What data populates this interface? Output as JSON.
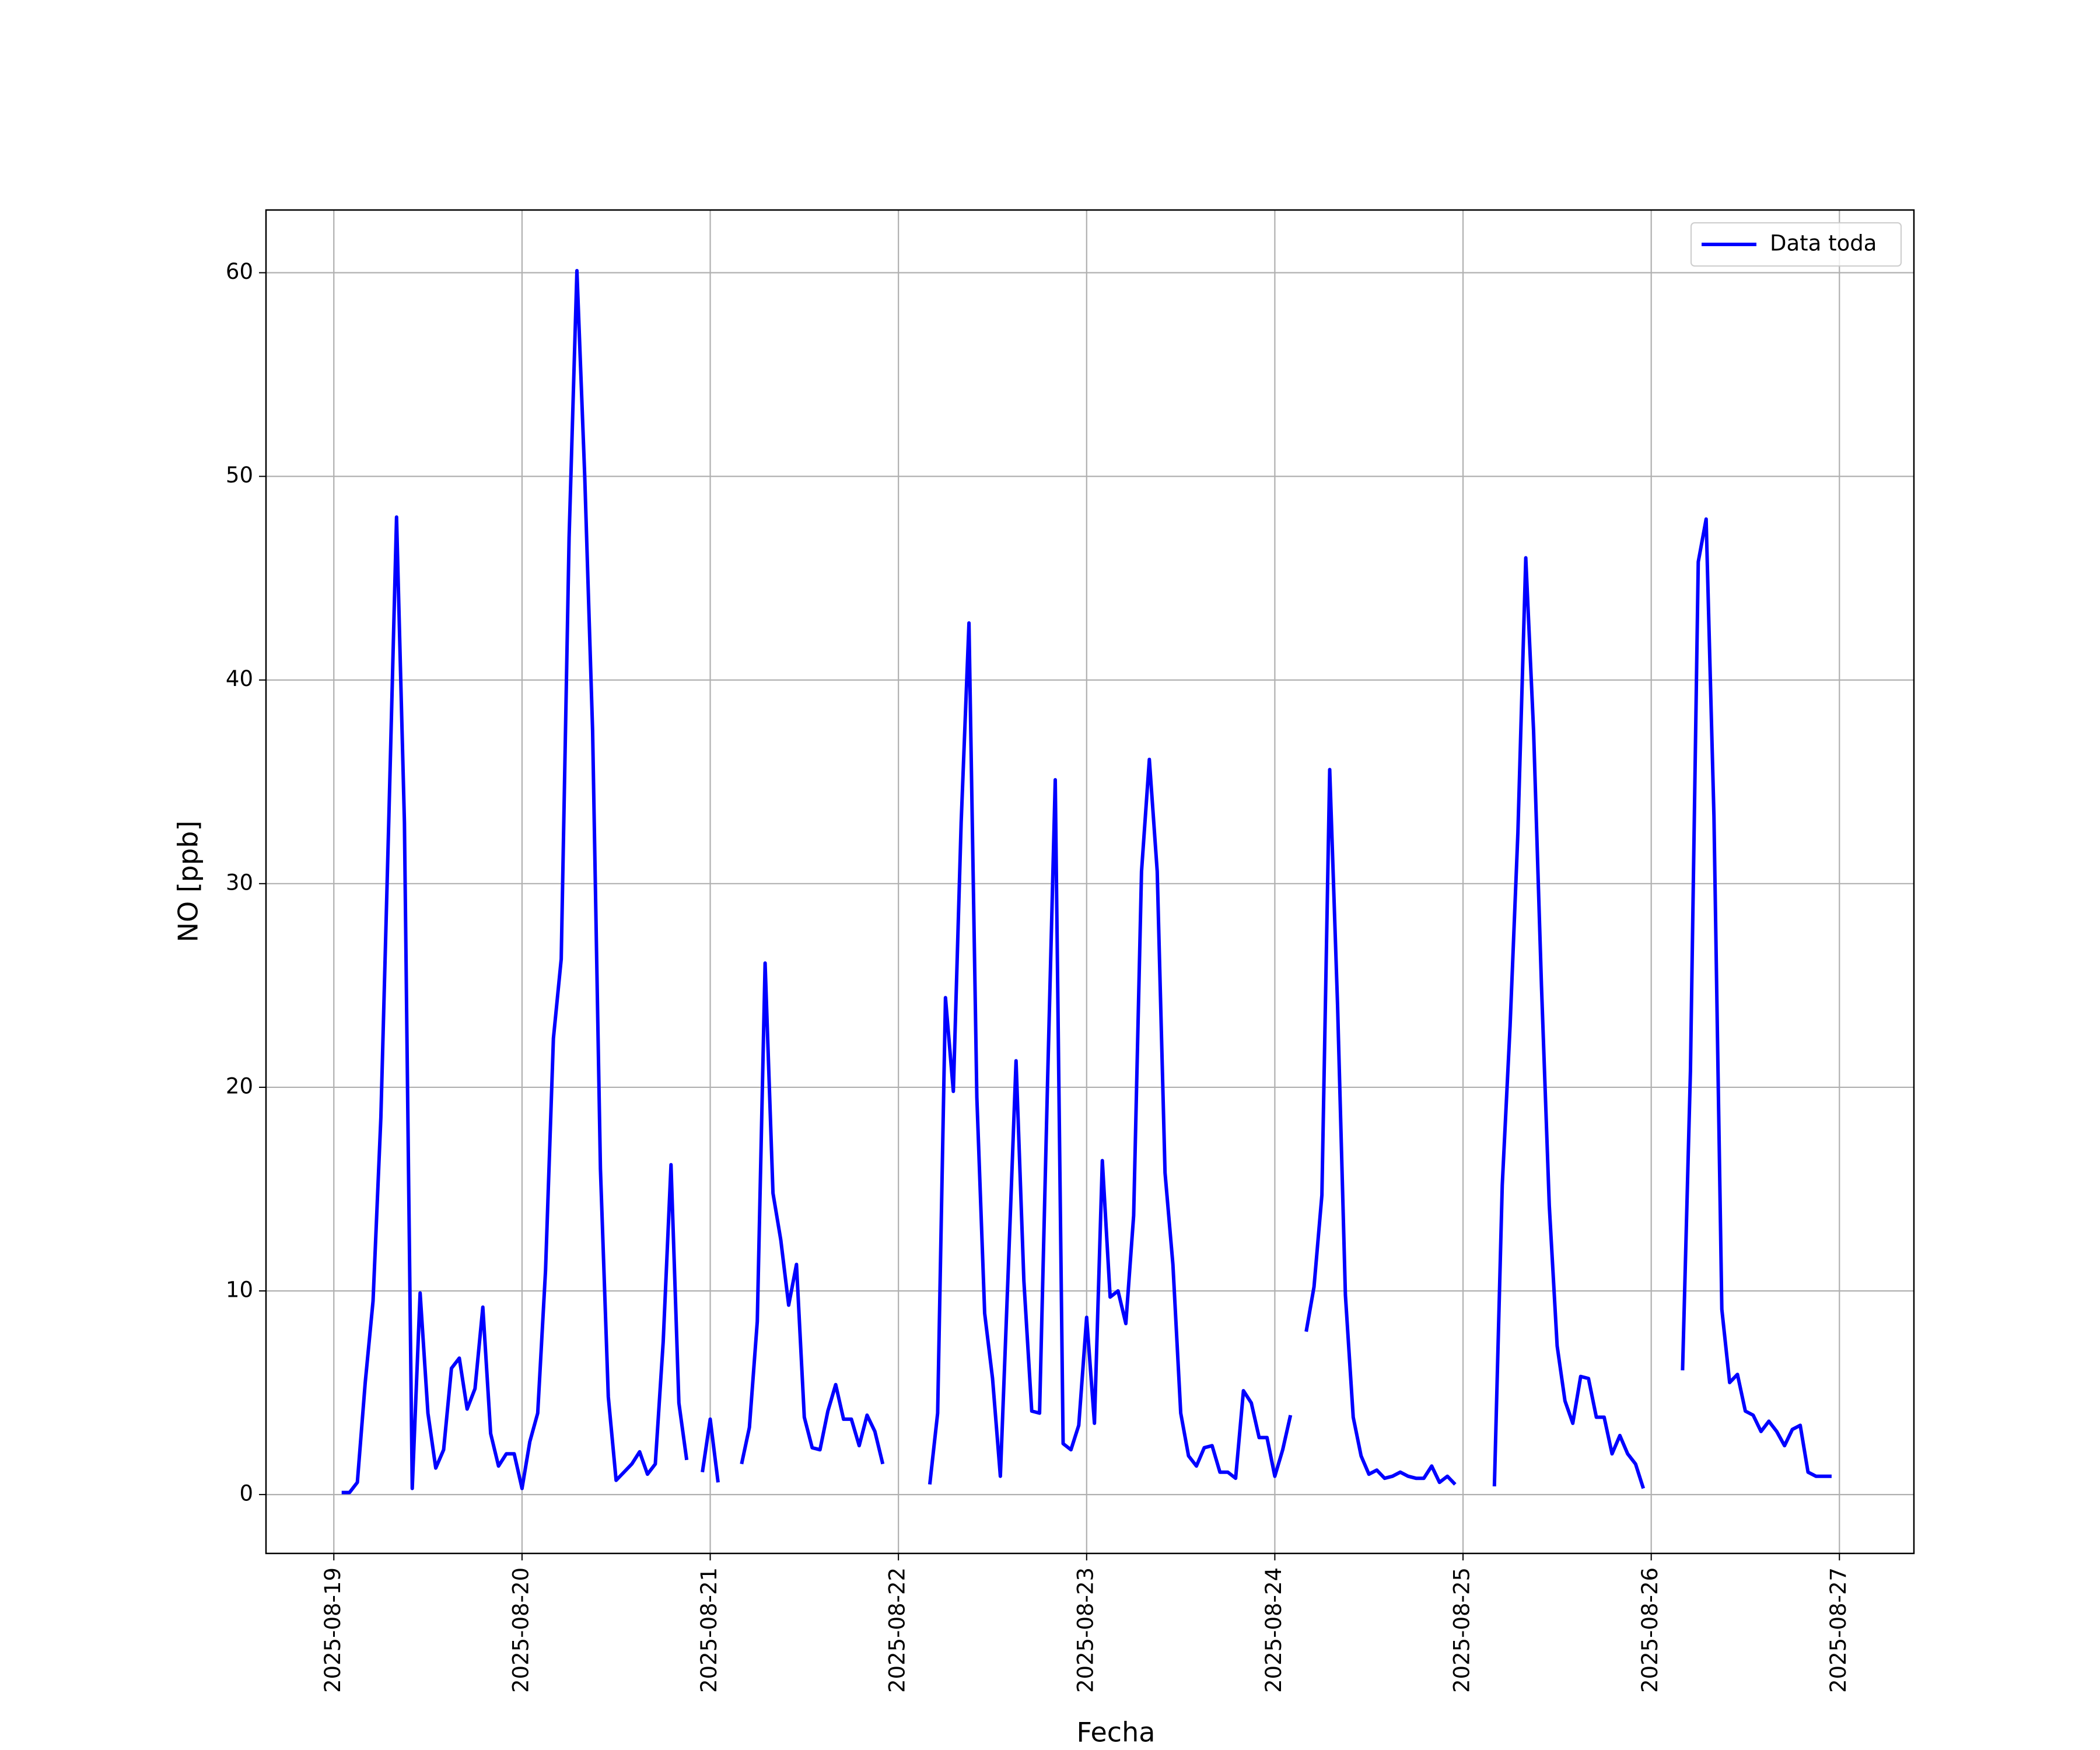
{
  "chart_data": {
    "type": "line",
    "xlabel": "Fecha",
    "ylabel": "NO [ppb]",
    "legend": "upper right",
    "grid": true,
    "xlim": [
      "2025-08-18 15:21",
      "2025-08-27 09:30"
    ],
    "xticks": [
      "2025-08-19",
      "2025-08-20",
      "2025-08-21",
      "2025-08-22",
      "2025-08-23",
      "2025-08-24",
      "2025-08-25",
      "2025-08-26",
      "2025-08-27"
    ],
    "ylim": [
      -2.89,
      63.08
    ],
    "yticks": [
      0,
      10,
      20,
      30,
      40,
      50,
      60
    ],
    "x": [
      "2025-08-19 01:00",
      "2025-08-19 02:00",
      "2025-08-19 03:00",
      "2025-08-19 04:00",
      "2025-08-19 05:00",
      "2025-08-19 06:00",
      "2025-08-19 07:00",
      "2025-08-19 08:00",
      "2025-08-19 09:00",
      "2025-08-19 10:00",
      "2025-08-19 11:00",
      "2025-08-19 12:00",
      "2025-08-19 13:00",
      "2025-08-19 14:00",
      "2025-08-19 15:00",
      "2025-08-19 16:00",
      "2025-08-19 17:00",
      "2025-08-19 18:00",
      "2025-08-19 19:00",
      "2025-08-19 20:00",
      "2025-08-19 21:00",
      "2025-08-19 22:00",
      "2025-08-19 23:00",
      "2025-08-20 00:00",
      "2025-08-20 01:00",
      "2025-08-20 02:00",
      "2025-08-20 03:00",
      "2025-08-20 04:00",
      "2025-08-20 05:00",
      "2025-08-20 06:00",
      "2025-08-20 07:00",
      "2025-08-20 08:00",
      "2025-08-20 09:00",
      "2025-08-20 10:00",
      "2025-08-20 11:00",
      "2025-08-20 12:00",
      "2025-08-20 13:00",
      "2025-08-20 14:00",
      "2025-08-20 15:00",
      "2025-08-20 16:00",
      "2025-08-20 17:00",
      "2025-08-20 18:00",
      "2025-08-20 19:00",
      "2025-08-20 20:00",
      "2025-08-20 21:00",
      "2025-08-20 22:00",
      "2025-08-20 23:00",
      "2025-08-21 00:00",
      "2025-08-21 01:00",
      "2025-08-21 02:00",
      "2025-08-21 03:00",
      "2025-08-21 04:00",
      "2025-08-21 05:00",
      "2025-08-21 06:00",
      "2025-08-21 07:00",
      "2025-08-21 08:00",
      "2025-08-21 09:00",
      "2025-08-21 10:00",
      "2025-08-21 11:00",
      "2025-08-21 12:00",
      "2025-08-21 13:00",
      "2025-08-21 14:00",
      "2025-08-21 15:00",
      "2025-08-21 16:00",
      "2025-08-21 17:00",
      "2025-08-21 18:00",
      "2025-08-21 19:00",
      "2025-08-21 20:00",
      "2025-08-21 21:00",
      "2025-08-21 22:00",
      "2025-08-21 23:00",
      "2025-08-22 00:00",
      "2025-08-22 01:00",
      "2025-08-22 02:00",
      "2025-08-22 03:00",
      "2025-08-22 04:00",
      "2025-08-22 05:00",
      "2025-08-22 06:00",
      "2025-08-22 07:00",
      "2025-08-22 08:00",
      "2025-08-22 09:00",
      "2025-08-22 10:00",
      "2025-08-22 11:00",
      "2025-08-22 12:00",
      "2025-08-22 13:00",
      "2025-08-22 14:00",
      "2025-08-22 15:00",
      "2025-08-22 16:00",
      "2025-08-22 17:00",
      "2025-08-22 18:00",
      "2025-08-22 19:00",
      "2025-08-22 20:00",
      "2025-08-22 21:00",
      "2025-08-22 22:00",
      "2025-08-22 23:00",
      "2025-08-23 00:00",
      "2025-08-23 01:00",
      "2025-08-23 02:00",
      "2025-08-23 03:00",
      "2025-08-23 04:00",
      "2025-08-23 05:00",
      "2025-08-23 06:00",
      "2025-08-23 07:00",
      "2025-08-23 08:00",
      "2025-08-23 09:00",
      "2025-08-23 10:00",
      "2025-08-23 11:00",
      "2025-08-23 12:00",
      "2025-08-23 13:00",
      "2025-08-23 14:00",
      "2025-08-23 15:00",
      "2025-08-23 16:00",
      "2025-08-23 17:00",
      "2025-08-23 18:00",
      "2025-08-23 19:00",
      "2025-08-23 20:00",
      "2025-08-23 21:00",
      "2025-08-23 22:00",
      "2025-08-23 23:00",
      "2025-08-24 00:00",
      "2025-08-24 01:00",
      "2025-08-24 02:00",
      "2025-08-24 03:00",
      "2025-08-24 04:00",
      "2025-08-24 05:00",
      "2025-08-24 06:00",
      "2025-08-24 07:00",
      "2025-08-24 08:00",
      "2025-08-24 09:00",
      "2025-08-24 10:00",
      "2025-08-24 11:00",
      "2025-08-24 12:00",
      "2025-08-24 13:00",
      "2025-08-24 14:00",
      "2025-08-24 15:00",
      "2025-08-24 16:00",
      "2025-08-24 17:00",
      "2025-08-24 18:00",
      "2025-08-24 19:00",
      "2025-08-24 20:00",
      "2025-08-24 21:00",
      "2025-08-24 22:00",
      "2025-08-24 23:00",
      "2025-08-25 00:00",
      "2025-08-25 01:00",
      "2025-08-25 02:00",
      "2025-08-25 03:00",
      "2025-08-25 04:00",
      "2025-08-25 05:00",
      "2025-08-25 06:00",
      "2025-08-25 07:00",
      "2025-08-25 08:00",
      "2025-08-25 09:00",
      "2025-08-25 10:00",
      "2025-08-25 11:00",
      "2025-08-25 12:00",
      "2025-08-25 13:00",
      "2025-08-25 14:00",
      "2025-08-25 15:00",
      "2025-08-25 16:00",
      "2025-08-25 17:00",
      "2025-08-25 18:00",
      "2025-08-25 19:00",
      "2025-08-25 20:00",
      "2025-08-25 21:00",
      "2025-08-25 22:00",
      "2025-08-25 23:00",
      "2025-08-26 00:00",
      "2025-08-26 01:00",
      "2025-08-26 02:00",
      "2025-08-26 03:00",
      "2025-08-26 04:00",
      "2025-08-26 05:00",
      "2025-08-26 06:00",
      "2025-08-26 07:00",
      "2025-08-26 08:00",
      "2025-08-26 09:00",
      "2025-08-26 10:00",
      "2025-08-26 11:00",
      "2025-08-26 12:00",
      "2025-08-26 13:00",
      "2025-08-26 14:00",
      "2025-08-26 15:00",
      "2025-08-26 16:00",
      "2025-08-26 17:00",
      "2025-08-26 18:00",
      "2025-08-26 19:00",
      "2025-08-26 20:00",
      "2025-08-26 21:00",
      "2025-08-26 22:00",
      "2025-08-26 23:00"
    ],
    "series": [
      {
        "name": "Data toda",
        "color": "#0000ff",
        "values": [
          0.1,
          0.1,
          0.6,
          5.5,
          9.5,
          18.5,
          33,
          48,
          33,
          0.3,
          9.9,
          4,
          1.3,
          2.2,
          6.2,
          6.7,
          4.2,
          5.2,
          9.2,
          3,
          1.4,
          2,
          2,
          0.3,
          2.6,
          4,
          11,
          22.4,
          26.3,
          47,
          60.1,
          50,
          37.5,
          16,
          4.8,
          0.7,
          1.1,
          1.5,
          2.1,
          1,
          1.5,
          7.5,
          16.2,
          4.5,
          1.7,
          null,
          1.1,
          3.7,
          0.6,
          null,
          null,
          1.5,
          3.3,
          8.5,
          26.1,
          14.8,
          12.5,
          9.3,
          11.3,
          3.8,
          2.3,
          2.2,
          4.1,
          5.4,
          3.7,
          3.7,
          2.4,
          3.9,
          3.1,
          1.5,
          null,
          null,
          null,
          null,
          null,
          0.5,
          4,
          24.4,
          19.8,
          33,
          42.8,
          19.5,
          8.9,
          5.7,
          0.9,
          11,
          21.3,
          10.5,
          4.1,
          4,
          20,
          35.1,
          2.5,
          2.2,
          3.4,
          8.7,
          3.5,
          16.4,
          9.7,
          10,
          8.4,
          13.7,
          30.6,
          36.1,
          30.6,
          15.8,
          11.3,
          4,
          1.9,
          1.4,
          2.3,
          2.4,
          1.1,
          1.1,
          0.8,
          5.1,
          4.5,
          2.8,
          2.8,
          0.9,
          2.2,
          3.9,
          null,
          8,
          10.2,
          14.7,
          35.6,
          24,
          9.8,
          3.8,
          1.9,
          1,
          1.2,
          0.8,
          0.9,
          1.1,
          0.9,
          0.8,
          0.8,
          1.4,
          0.6,
          0.9,
          0.5,
          null,
          null,
          null,
          null,
          0.4,
          15.2,
          23,
          32.5,
          46,
          37.5,
          25,
          14.2,
          7.3,
          4.6,
          3.5,
          5.8,
          5.7,
          3.8,
          3.8,
          2,
          2.9,
          2,
          1.5,
          0.3,
          null,
          null,
          null,
          null,
          6.1,
          20.8,
          45.8,
          47.9,
          33.3,
          9.1,
          5.5,
          5.9,
          4.1,
          3.9,
          3.1,
          3.6,
          3.1,
          2.4,
          3.2,
          3.4,
          1.1,
          0.9,
          0.9,
          0.9
        ]
      }
    ]
  }
}
